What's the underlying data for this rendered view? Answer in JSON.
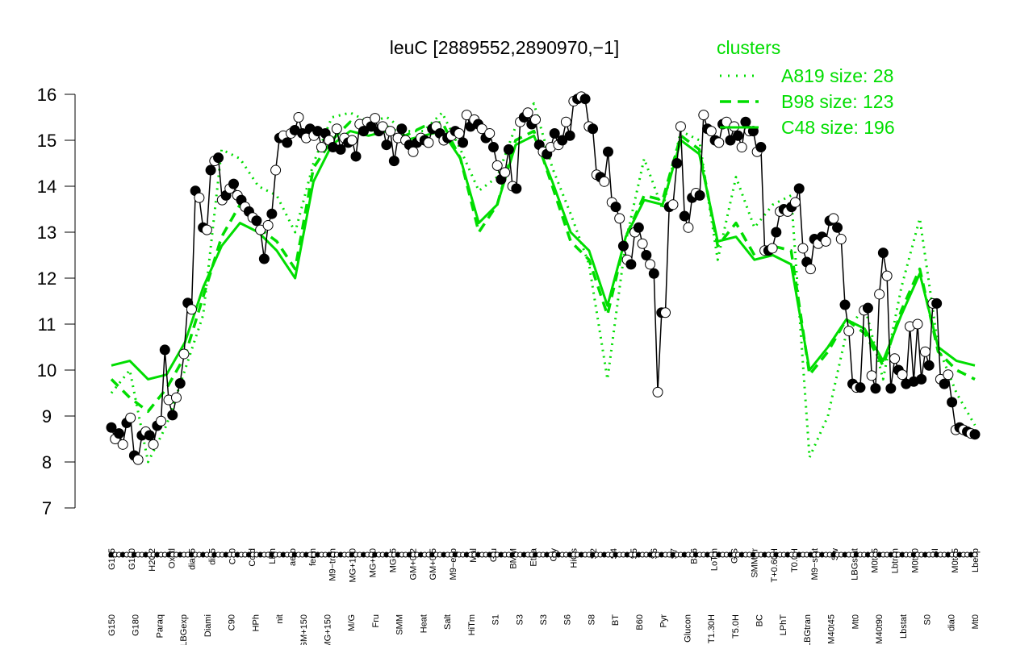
{
  "chart_data": {
    "type": "line",
    "title": "leuC [2889552,2890970,−1]",
    "xlabel": "",
    "ylabel": "",
    "ylim": [
      7,
      16
    ],
    "yticks": [
      7,
      8,
      9,
      10,
      11,
      12,
      13,
      14,
      15,
      16
    ],
    "grid": false,
    "legend": {
      "title": "clusters",
      "placement": "top-right",
      "color": "#00dd00",
      "entries": [
        {
          "label": "A819 size: 28",
          "style": "dotted"
        },
        {
          "label": "B98 size: 123",
          "style": "dashed"
        },
        {
          "label": "C48 size: 196",
          "style": "solid"
        }
      ]
    },
    "colors": {
      "data": "#000000",
      "cluster": "#00dd00"
    },
    "upper_tick_labels": [
      "G135",
      "G180",
      "H2O2",
      "Oxctl",
      "dia15",
      "dia5",
      "C30",
      "Cold",
      "LPh",
      "aero",
      "ferm",
      "M9−tran",
      "MG+120",
      "MG+60",
      "MG+5",
      "GM+0.2",
      "GM+0.5",
      "M9−exp",
      "Mal",
      "Glu",
      "BMM",
      "Etha",
      "Gly",
      "HiOs",
      "S2",
      "S4",
      "S5",
      "S6",
      "S7",
      "B36",
      "LoTm",
      "G/S",
      "SMMPr",
      "T+0.60H",
      "T0.0H",
      "M9−stat",
      "Sw",
      "LBGstat",
      "M0t45",
      "Lbtran",
      "M0t90",
      "BI",
      "M0t45",
      "Lbexp"
    ],
    "lower_tick_labels": [
      "G150",
      "G180",
      "Paraq",
      "LBGexp",
      "Diami",
      "C90",
      "HPh",
      "nit",
      "GM+150",
      "MG+150",
      "M/G",
      "Fru",
      "SMM",
      "Heat",
      "Salt",
      "HiTm",
      "S1",
      "S3",
      "S3",
      "S6",
      "S8",
      "BT",
      "B60",
      "Pyr",
      "Glucon",
      "T1.30H",
      "T5.0H",
      "BC",
      "LPhT",
      "LBGtran",
      "M40t45",
      "Mt0",
      "M40t90",
      "Lbstat",
      "S0",
      "dia0",
      "Mt0"
    ],
    "series": [
      {
        "type": "data",
        "values": [
          8.75,
          8.5,
          8.62,
          8.38,
          8.85,
          8.96,
          8.14,
          8.05,
          8.58,
          8.66,
          8.58,
          8.38,
          8.79,
          8.89,
          10.44,
          9.35,
          9.02,
          9.4,
          9.71,
          10.35,
          11.46,
          11.32,
          13.9,
          13.75,
          13.1,
          13.05,
          14.35,
          14.55,
          14.62,
          13.7,
          13.8,
          13.95,
          14.05,
          13.8,
          13.7,
          13.55,
          13.45,
          13.32,
          13.25,
          13.05,
          12.42,
          13.15,
          13.4,
          14.35,
          15.05,
          15.1,
          14.95,
          15.15,
          15.22,
          15.5,
          15.15,
          15.05,
          15.25,
          15.1,
          15.2,
          14.85,
          15.15,
          15.0,
          14.85,
          15.25,
          14.8,
          15.05,
          14.95,
          15.0,
          14.65,
          15.35,
          15.2,
          15.4,
          15.3,
          15.48,
          15.2,
          15.3,
          14.9,
          15.2,
          14.55,
          15.05,
          15.25,
          15.0,
          14.9,
          14.75,
          14.95,
          15.05,
          15.0,
          14.95,
          15.25,
          15.3,
          15.15,
          15.0,
          15.05,
          15.1,
          15.2,
          15.15,
          14.95,
          15.55,
          15.3,
          15.45,
          15.35,
          15.25,
          15.05,
          15.15,
          14.85,
          14.45,
          14.15,
          14.3,
          14.8,
          14.0,
          13.95,
          15.4,
          15.5,
          15.6,
          15.35,
          15.45,
          14.9,
          14.75,
          14.7,
          14.85,
          15.15,
          14.9,
          15.0,
          15.4,
          15.1,
          15.85,
          15.9,
          15.95,
          15.9,
          15.3,
          15.25,
          14.25,
          14.2,
          14.1,
          14.75,
          13.65,
          13.55,
          13.3,
          12.7,
          12.4,
          12.3,
          13.0,
          13.1,
          12.75,
          12.5,
          12.3,
          12.1,
          9.52,
          11.25,
          11.25,
          13.55,
          13.6,
          14.5,
          15.3,
          13.35,
          13.1,
          13.75,
          13.85,
          13.8,
          15.55,
          15.25,
          15.2,
          15.0,
          14.95,
          15.35,
          15.4,
          15.0,
          15.3,
          15.1,
          14.85,
          15.4,
          15.2,
          15.2,
          14.75,
          14.85,
          12.6,
          12.6,
          12.65,
          13.0,
          13.45,
          13.5,
          13.45,
          13.55,
          13.65,
          13.95,
          12.65,
          12.35,
          12.2,
          12.85,
          12.75,
          12.9,
          12.8,
          13.25,
          13.3,
          13.1,
          12.85,
          11.42,
          10.85,
          9.7,
          9.62,
          9.62,
          11.3,
          11.35,
          9.88,
          9.6,
          11.65,
          12.55,
          12.05,
          9.6,
          10.25,
          10.0,
          9.9,
          9.7,
          10.95,
          9.75,
          11.0,
          9.8,
          10.4,
          10.1,
          11.45,
          11.45,
          9.8,
          9.7,
          9.9,
          9.3,
          8.7,
          8.75,
          8.7,
          8.66,
          8.62,
          8.6
        ]
      },
      {
        "type": "cluster",
        "name": "A819 size: 28",
        "style": "dotted",
        "values": [
          9.5,
          10.0,
          8.0,
          8.8,
          10.0,
          11.2,
          14.8,
          14.6,
          14.0,
          13.8,
          13.0,
          14.5,
          15.5,
          15.6,
          15.4,
          15.5,
          15.2,
          15.2,
          15.6,
          14.8,
          13.9,
          14.2,
          15.3,
          15.8,
          14.4,
          13.4,
          12.3,
          9.8,
          12.8,
          14.6,
          13.5,
          15.2,
          15.0,
          12.4,
          14.2,
          13.1,
          13.6,
          13.8,
          8.1,
          9.0,
          10.8,
          11.4,
          9.8,
          11.8,
          13.3,
          10.5,
          9.5,
          8.8
        ]
      },
      {
        "type": "cluster",
        "name": "B98 size: 123",
        "style": "dashed",
        "values": [
          9.8,
          9.4,
          9.1,
          9.6,
          10.3,
          11.6,
          12.9,
          13.6,
          13.1,
          12.8,
          12.2,
          14.4,
          15.0,
          15.4,
          15.2,
          15.3,
          15.1,
          15.3,
          15.4,
          14.6,
          13.0,
          13.6,
          15.0,
          15.2,
          14.0,
          12.8,
          12.4,
          11.2,
          12.9,
          13.8,
          13.7,
          15.1,
          14.8,
          12.7,
          13.2,
          12.5,
          12.7,
          12.6,
          9.9,
          10.4,
          11.1,
          10.8,
          10.1,
          11.3,
          12.2,
          10.4,
          10.0,
          9.8
        ]
      },
      {
        "type": "cluster",
        "name": "C48 size: 196",
        "style": "solid",
        "values": [
          10.1,
          10.2,
          9.8,
          9.9,
          10.6,
          11.8,
          12.7,
          13.2,
          13.0,
          12.6,
          12.0,
          14.1,
          14.9,
          15.2,
          15.1,
          15.2,
          15.0,
          15.1,
          15.2,
          14.6,
          13.2,
          13.6,
          14.9,
          15.1,
          14.1,
          13.0,
          12.6,
          11.4,
          12.9,
          13.7,
          13.6,
          15.0,
          14.7,
          12.8,
          12.9,
          12.4,
          12.5,
          12.3,
          10.0,
          10.5,
          11.1,
          10.9,
          10.2,
          11.2,
          12.1,
          10.5,
          10.2,
          10.1
        ]
      }
    ]
  }
}
